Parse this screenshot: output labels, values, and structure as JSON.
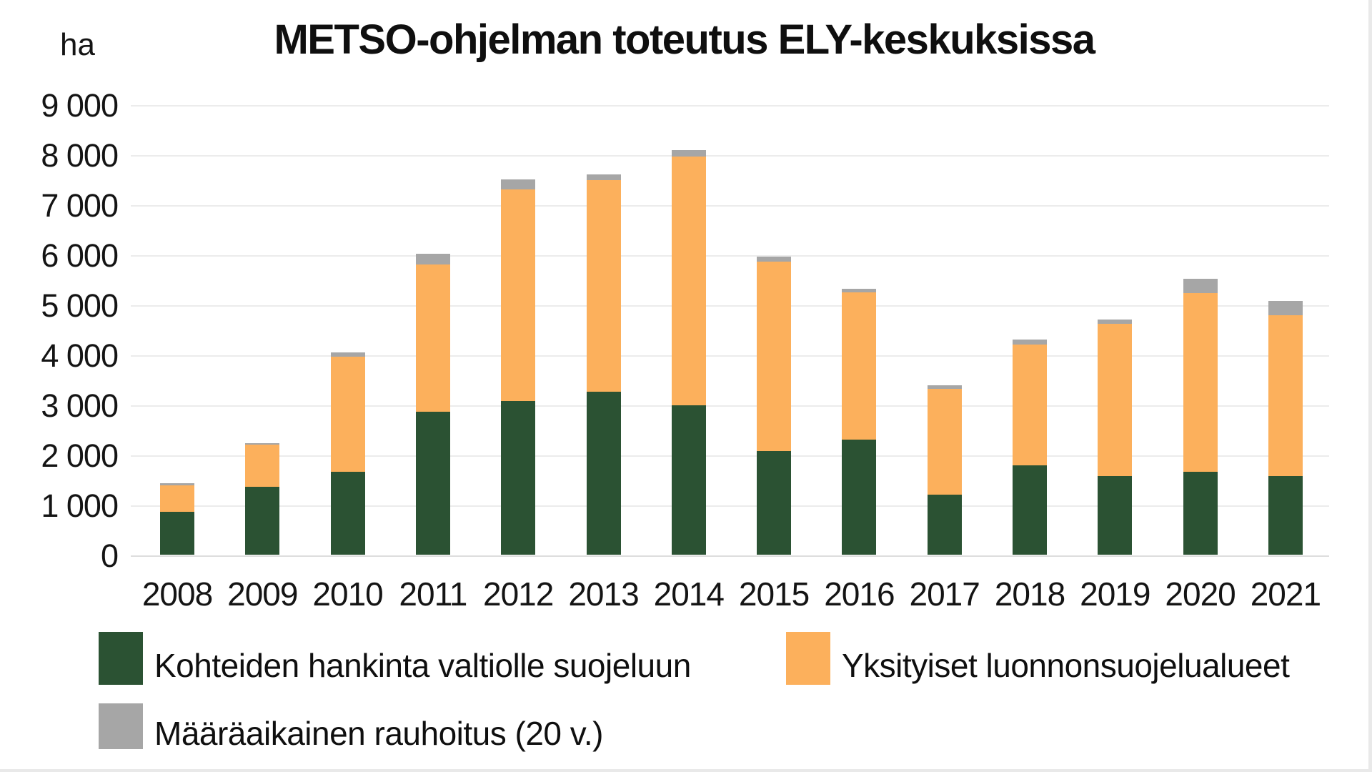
{
  "header": {
    "title": "METSO-ohjelman toteutus ELY-keskuksissa",
    "unit_label": "ha"
  },
  "chart_data": {
    "type": "bar",
    "stacked": true,
    "title": "METSO-ohjelman toteutus ELY-keskuksissa",
    "ylabel": "ha",
    "xlabel": "",
    "ylim": [
      0,
      9000
    ],
    "ytick_interval": 1000,
    "y_ticks_top_down": [
      "9 000",
      "8 000",
      "7 000",
      "6 000",
      "5 000",
      "4 000",
      "3 000",
      "2 000",
      "1 000",
      "0"
    ],
    "grid": true,
    "legend_position": "bottom",
    "categories": [
      "2008",
      "2009",
      "2010",
      "2011",
      "2012",
      "2013",
      "2014",
      "2015",
      "2016",
      "2017",
      "2018",
      "2019",
      "2020",
      "2021"
    ],
    "series": [
      {
        "name": "Kohteiden hankinta valtiolle suojeluun",
        "color": "#2b5233",
        "values": [
          860,
          1360,
          1660,
          2860,
          3070,
          3260,
          2990,
          2070,
          2300,
          1200,
          1790,
          1570,
          1660,
          1570
        ]
      },
      {
        "name": "Yksityiset luonnonsuojelualueet",
        "color": "#fcb05c",
        "values": [
          530,
          840,
          2300,
          2940,
          4230,
          4230,
          4970,
          3790,
          2940,
          2110,
          2410,
          3040,
          3570,
          3210
        ]
      },
      {
        "name": "Määräaikainen rauhoitus (20 v.)",
        "color": "#a6a6a6",
        "values": [
          40,
          25,
          85,
          215,
          200,
          115,
          130,
          100,
          70,
          75,
          100,
          90,
          290,
          290
        ]
      }
    ],
    "totals": [
      1430,
      2225,
      4045,
      6015,
      7500,
      7605,
      8090,
      5960,
      5310,
      3385,
      4300,
      4700,
      5520,
      5070
    ]
  },
  "colors": {
    "background": "#ffffff",
    "gridline": "#ececec",
    "baseline": "#dddddd",
    "text": "#141414",
    "frame_border": "#e9e9e9"
  }
}
